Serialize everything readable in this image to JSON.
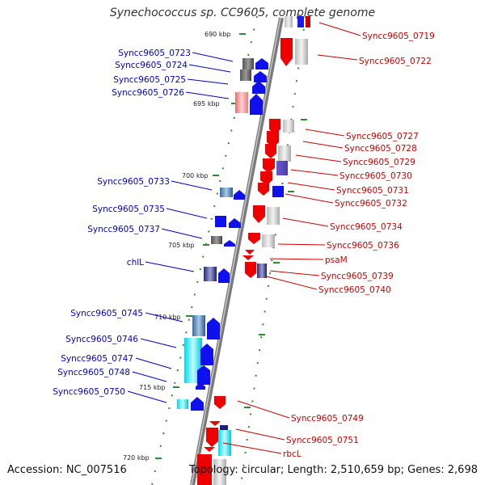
{
  "title": "Synechococcus sp. CC9605, complete genome",
  "accession": "Accession: NC_007516",
  "summary": "Topology: circular; Length: 2,510,659 bp; Genes: 2,698",
  "colors": {
    "left_labels": "#0000cc",
    "right_labels": "#cc0000",
    "axis": "#888888",
    "tick": "#228b22"
  },
  "scale_labels": [
    "690 kbp",
    "695 kbp",
    "700 kbp",
    "705 kbp",
    "710 kbp",
    "715 kbp",
    "720 kbp"
  ],
  "left_genes": [
    "Syncc9605_0723",
    "Syncc9605_0724",
    "Syncc9605_0725",
    "Syncc9605_0726",
    "Syncc9605_0733",
    "Syncc9605_0735",
    "Syncc9605_0737",
    "chlL",
    "Syncc9605_0745",
    "Syncc9605_0746",
    "Syncc9605_0747",
    "Syncc9605_0748",
    "Syncc9605_0750"
  ],
  "right_genes": [
    "Syncc9605_0719",
    "Syncc9605_0722",
    "Syncc9605_0727",
    "Syncc9605_0728",
    "Syncc9605_0729",
    "Syncc9605_0730",
    "Syncc9605_0731",
    "Syncc9605_0732",
    "Syncc9605_0734",
    "Syncc9605_0736",
    "psaM",
    "Syncc9605_0739",
    "Syncc9605_0740",
    "Syncc9605_0749",
    "Syncc9605_0751",
    "rbcL"
  ]
}
